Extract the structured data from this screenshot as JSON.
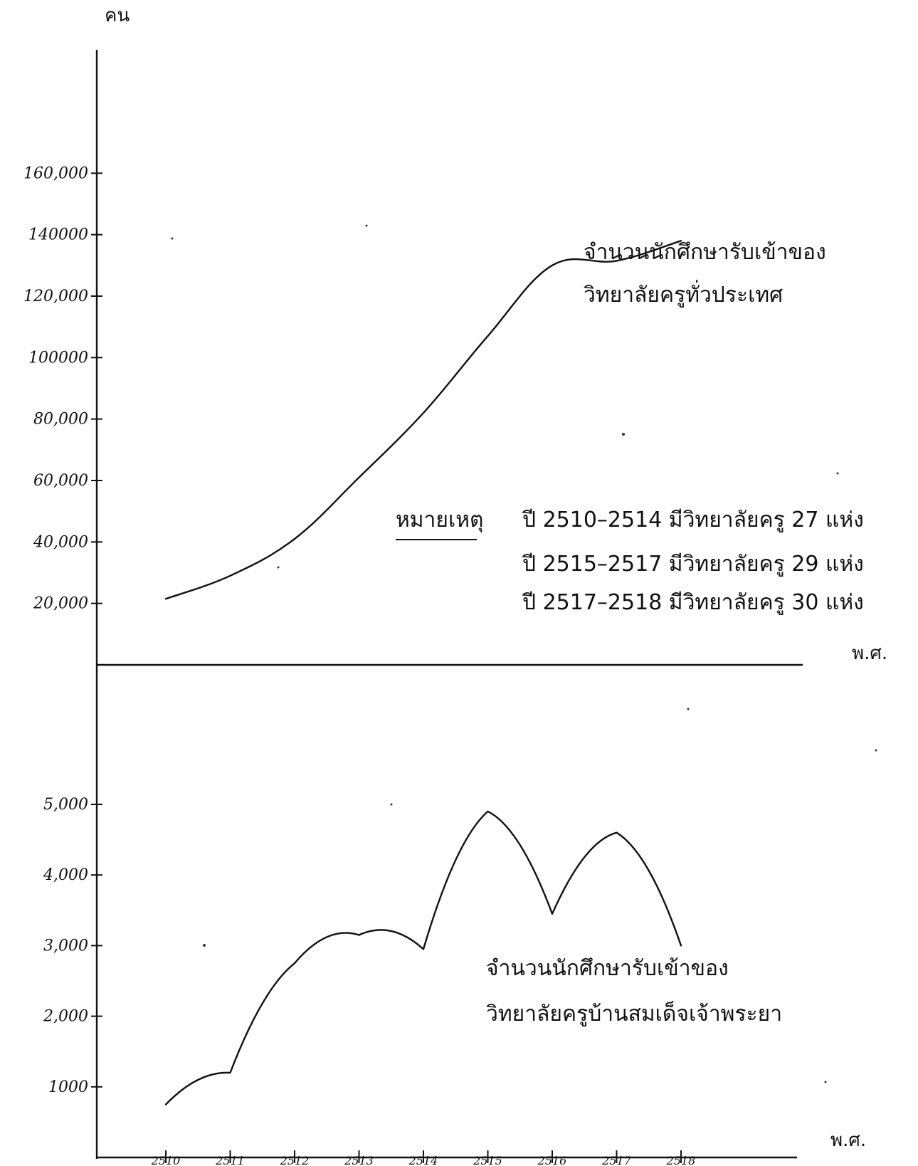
{
  "chart_data": [
    {
      "type": "line",
      "panel": "upper",
      "ylabel": "คน",
      "xlabel": "พ.ศ.",
      "y_ticks": [
        "160,000",
        "140000",
        "120,000",
        "100000",
        "80,000",
        "60,000",
        "40,000",
        "20,000"
      ],
      "y_tick_values": [
        160000,
        140000,
        120000,
        100000,
        80000,
        60000,
        40000,
        20000
      ],
      "ylim": [
        0,
        180000
      ],
      "x": [
        2510,
        2511,
        2512,
        2513,
        2514,
        2515,
        2516,
        2517,
        2518
      ],
      "series": [
        {
          "name": "จำนวนนักศึกษารับเข้าของวิทยาลัยครูทั่วประเทศ",
          "values": [
            21500,
            29000,
            41000,
            61000,
            82000,
            107000,
            130000,
            131500,
            138000
          ]
        }
      ],
      "series_label_lines": [
        "จำนวนนักศึกษารับเข้าของ",
        "วิทยาลัยครูทั่วประเทศ"
      ],
      "note": {
        "label": "หมายเหตุ",
        "lines": [
          "ปี 2510–2514 มีวิทยาลัยครู 27 แห่ง",
          "ปี 2515–2517 มีวิทยาลัยครู 29 แห่ง",
          "ปี 2517–2518 มีวิทยาลัยครู 30 แห่ง"
        ]
      }
    },
    {
      "type": "line",
      "panel": "lower",
      "xlabel": "พ.ศ.",
      "y_ticks": [
        "5,000",
        "4,000",
        "3,000",
        "2,000",
        "1000"
      ],
      "y_tick_values": [
        5000,
        4000,
        3000,
        2000,
        1000
      ],
      "ylim": [
        0,
        6000
      ],
      "x": [
        2510,
        2511,
        2512,
        2513,
        2514,
        2515,
        2516,
        2517,
        2518
      ],
      "x_tick_labels": [
        "2510",
        "2511",
        "2512",
        "2513",
        "2514",
        "2515",
        "2516",
        "2517",
        "2518"
      ],
      "series": [
        {
          "name": "จำนวนนักศึกษารับเข้าของวิทยาลัยครูบ้านสมเด็จเจ้าพระยา",
          "values": [
            750,
            1200,
            2750,
            3150,
            2950,
            4900,
            3450,
            4600,
            3000
          ]
        }
      ],
      "series_label_lines": [
        "จำนวนนักศึกษารับเข้าของ",
        "วิทยาลัยครูบ้านสมเด็จเจ้าพระยา"
      ]
    }
  ]
}
